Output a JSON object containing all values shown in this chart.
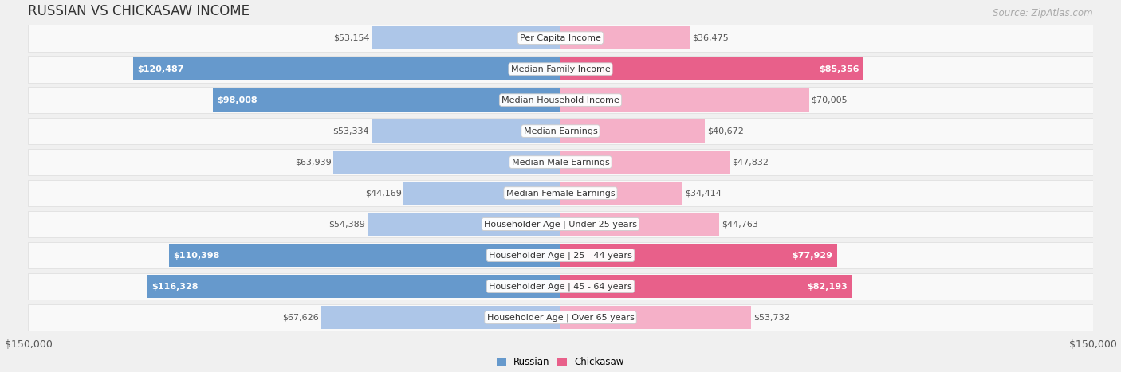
{
  "title": "RUSSIAN VS CHICKASAW INCOME",
  "source": "Source: ZipAtlas.com",
  "categories": [
    "Per Capita Income",
    "Median Family Income",
    "Median Household Income",
    "Median Earnings",
    "Median Male Earnings",
    "Median Female Earnings",
    "Householder Age | Under 25 years",
    "Householder Age | 25 - 44 years",
    "Householder Age | 45 - 64 years",
    "Householder Age | Over 65 years"
  ],
  "russian_values": [
    53154,
    120487,
    98008,
    53334,
    63939,
    44169,
    54389,
    110398,
    116328,
    67626
  ],
  "chickasaw_values": [
    36475,
    85356,
    70005,
    40672,
    47832,
    34414,
    44763,
    77929,
    82193,
    53732
  ],
  "russian_labels": [
    "$53,154",
    "$120,487",
    "$98,008",
    "$53,334",
    "$63,939",
    "$44,169",
    "$54,389",
    "$110,398",
    "$116,328",
    "$67,626"
  ],
  "chickasaw_labels": [
    "$36,475",
    "$85,356",
    "$70,005",
    "$40,672",
    "$47,832",
    "$34,414",
    "$44,763",
    "$77,929",
    "$82,193",
    "$53,732"
  ],
  "russian_color_light": "#adc6e8",
  "chickasaw_color_light": "#f5b0c8",
  "russian_color_solid": "#6699cc",
  "chickasaw_color_solid": "#e8608a",
  "max_value": 150000,
  "background_color": "#f0f0f0",
  "row_bg_color": "#f9f9f9",
  "legend_russian": "Russian",
  "legend_chickasaw": "Chickasaw",
  "title_fontsize": 12,
  "source_fontsize": 8.5,
  "label_fontsize": 8,
  "category_fontsize": 8,
  "axis_fontsize": 9,
  "inside_threshold": 75000
}
